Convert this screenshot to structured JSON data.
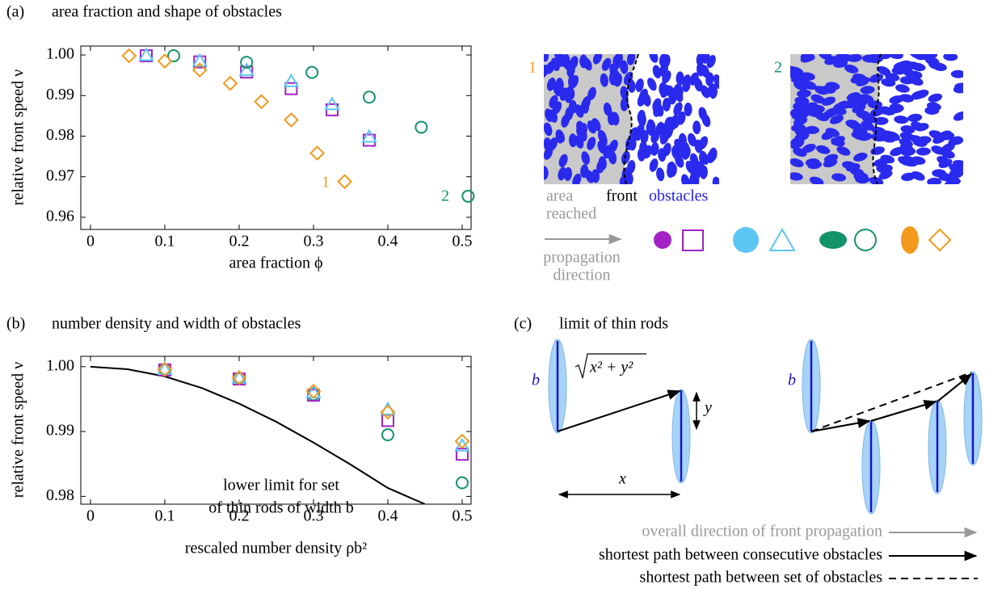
{
  "chart_data": [
    {
      "type": "scatter",
      "panel": "(a)",
      "title": "area fraction and shape of obstacles",
      "xlabel": "area fraction ϕ",
      "ylabel": "relative front speed ν",
      "xlim": [
        -0.013,
        0.512
      ],
      "ylim": [
        0.957,
        1.0022
      ],
      "xticks": [
        0,
        0.1,
        0.2,
        0.3,
        0.4,
        0.5
      ],
      "yticks": [
        {
          "value": 1,
          "label": "1.00"
        },
        0.99,
        0.98,
        0.97,
        0.96
      ],
      "annotations": [
        "1",
        "2"
      ],
      "series": [
        {
          "marker": "square",
          "color": "#a322c4",
          "x": [
            0.075,
            0.147,
            0.21,
            0.27,
            0.325,
            0.375
          ],
          "values": [
            0.9998,
            0.9983,
            0.9958,
            0.9917,
            0.9865,
            0.979
          ]
        },
        {
          "marker": "triangle",
          "color": "#5cc6f2",
          "x": [
            0.075,
            0.147,
            0.21,
            0.27,
            0.325,
            0.375
          ],
          "values": [
            0.9999,
            0.9985,
            0.9962,
            0.9935,
            0.9878,
            0.9798
          ]
        },
        {
          "marker": "circle",
          "color": "#13936a",
          "x": [
            0.112,
            0.21,
            0.298,
            0.375,
            0.445,
            0.508
          ],
          "values": [
            0.9998,
            0.9982,
            0.9957,
            0.9896,
            0.9822,
            0.9652
          ]
        },
        {
          "marker": "diamond",
          "color": "#f39a1c",
          "x": [
            0.052,
            0.1,
            0.147,
            0.188,
            0.23,
            0.27,
            0.305,
            0.342
          ],
          "values": [
            0.9998,
            0.9985,
            0.9963,
            0.993,
            0.9885,
            0.984,
            0.9758,
            0.9688
          ]
        }
      ]
    },
    {
      "type": "scatter",
      "panel": "(b)",
      "title": "number density and width of obstacles",
      "xlabel": "rescaled number density ρb²",
      "ylabel": "relative front speed ν",
      "xlim": [
        -0.013,
        0.512
      ],
      "ylim": [
        0.9788,
        1.0016
      ],
      "xticks": [
        0,
        0.1,
        0.2,
        0.3,
        0.4,
        0.5
      ],
      "yticks": [
        {
          "value": 1,
          "label": "1.00"
        },
        0.99,
        0.98
      ],
      "annotations": [
        "lower limit for set",
        "of thin rods of width b"
      ],
      "series": [
        {
          "style": "line",
          "color": "#000000",
          "x": [
            0,
            0.05,
            0.1,
            0.15,
            0.2,
            0.25,
            0.3,
            0.35,
            0.4,
            0.45
          ],
          "values": [
            1,
            0.9996,
            0.9985,
            0.9967,
            0.9943,
            0.9915,
            0.9883,
            0.9849,
            0.9813,
            0.9788
          ]
        },
        {
          "marker": "circle",
          "color": "#13936a",
          "x": [
            0.1,
            0.2,
            0.3,
            0.4,
            0.5
          ],
          "values": [
            0.9995,
            0.9982,
            0.9957,
            0.9895,
            0.9821
          ]
        },
        {
          "marker": "square",
          "color": "#a322c4",
          "x": [
            0.1,
            0.2,
            0.3,
            0.4,
            0.5
          ],
          "values": [
            0.9995,
            0.9981,
            0.9956,
            0.9917,
            0.9865
          ]
        },
        {
          "marker": "triangle",
          "color": "#5cc6f2",
          "x": [
            0.1,
            0.2,
            0.3,
            0.4,
            0.5
          ],
          "values": [
            0.9996,
            0.9983,
            0.996,
            0.9934,
            0.9878
          ]
        },
        {
          "marker": "diamond",
          "color": "#f39a1c",
          "x": [
            0.1,
            0.2,
            0.3,
            0.4,
            0.5
          ],
          "values": [
            0.9996,
            0.9983,
            0.9962,
            0.993,
            0.9885
          ]
        }
      ]
    }
  ],
  "images": {
    "labels": [
      "1",
      "2"
    ],
    "area_reached": [
      "area",
      "reached"
    ],
    "front": "front",
    "obstacles": "obstacles",
    "propagation_direction": [
      "propagation",
      "direction"
    ]
  },
  "panel_c": {
    "panel": "(c)",
    "title": "limit of thin rods",
    "width_label": "b",
    "distance_label": "x² + y²",
    "y_label": "y",
    "x_label": "x",
    "legend": [
      "overall direction of front propagation",
      "shortest path between consecutive obstacles",
      "shortest path between set of obstacles"
    ]
  }
}
